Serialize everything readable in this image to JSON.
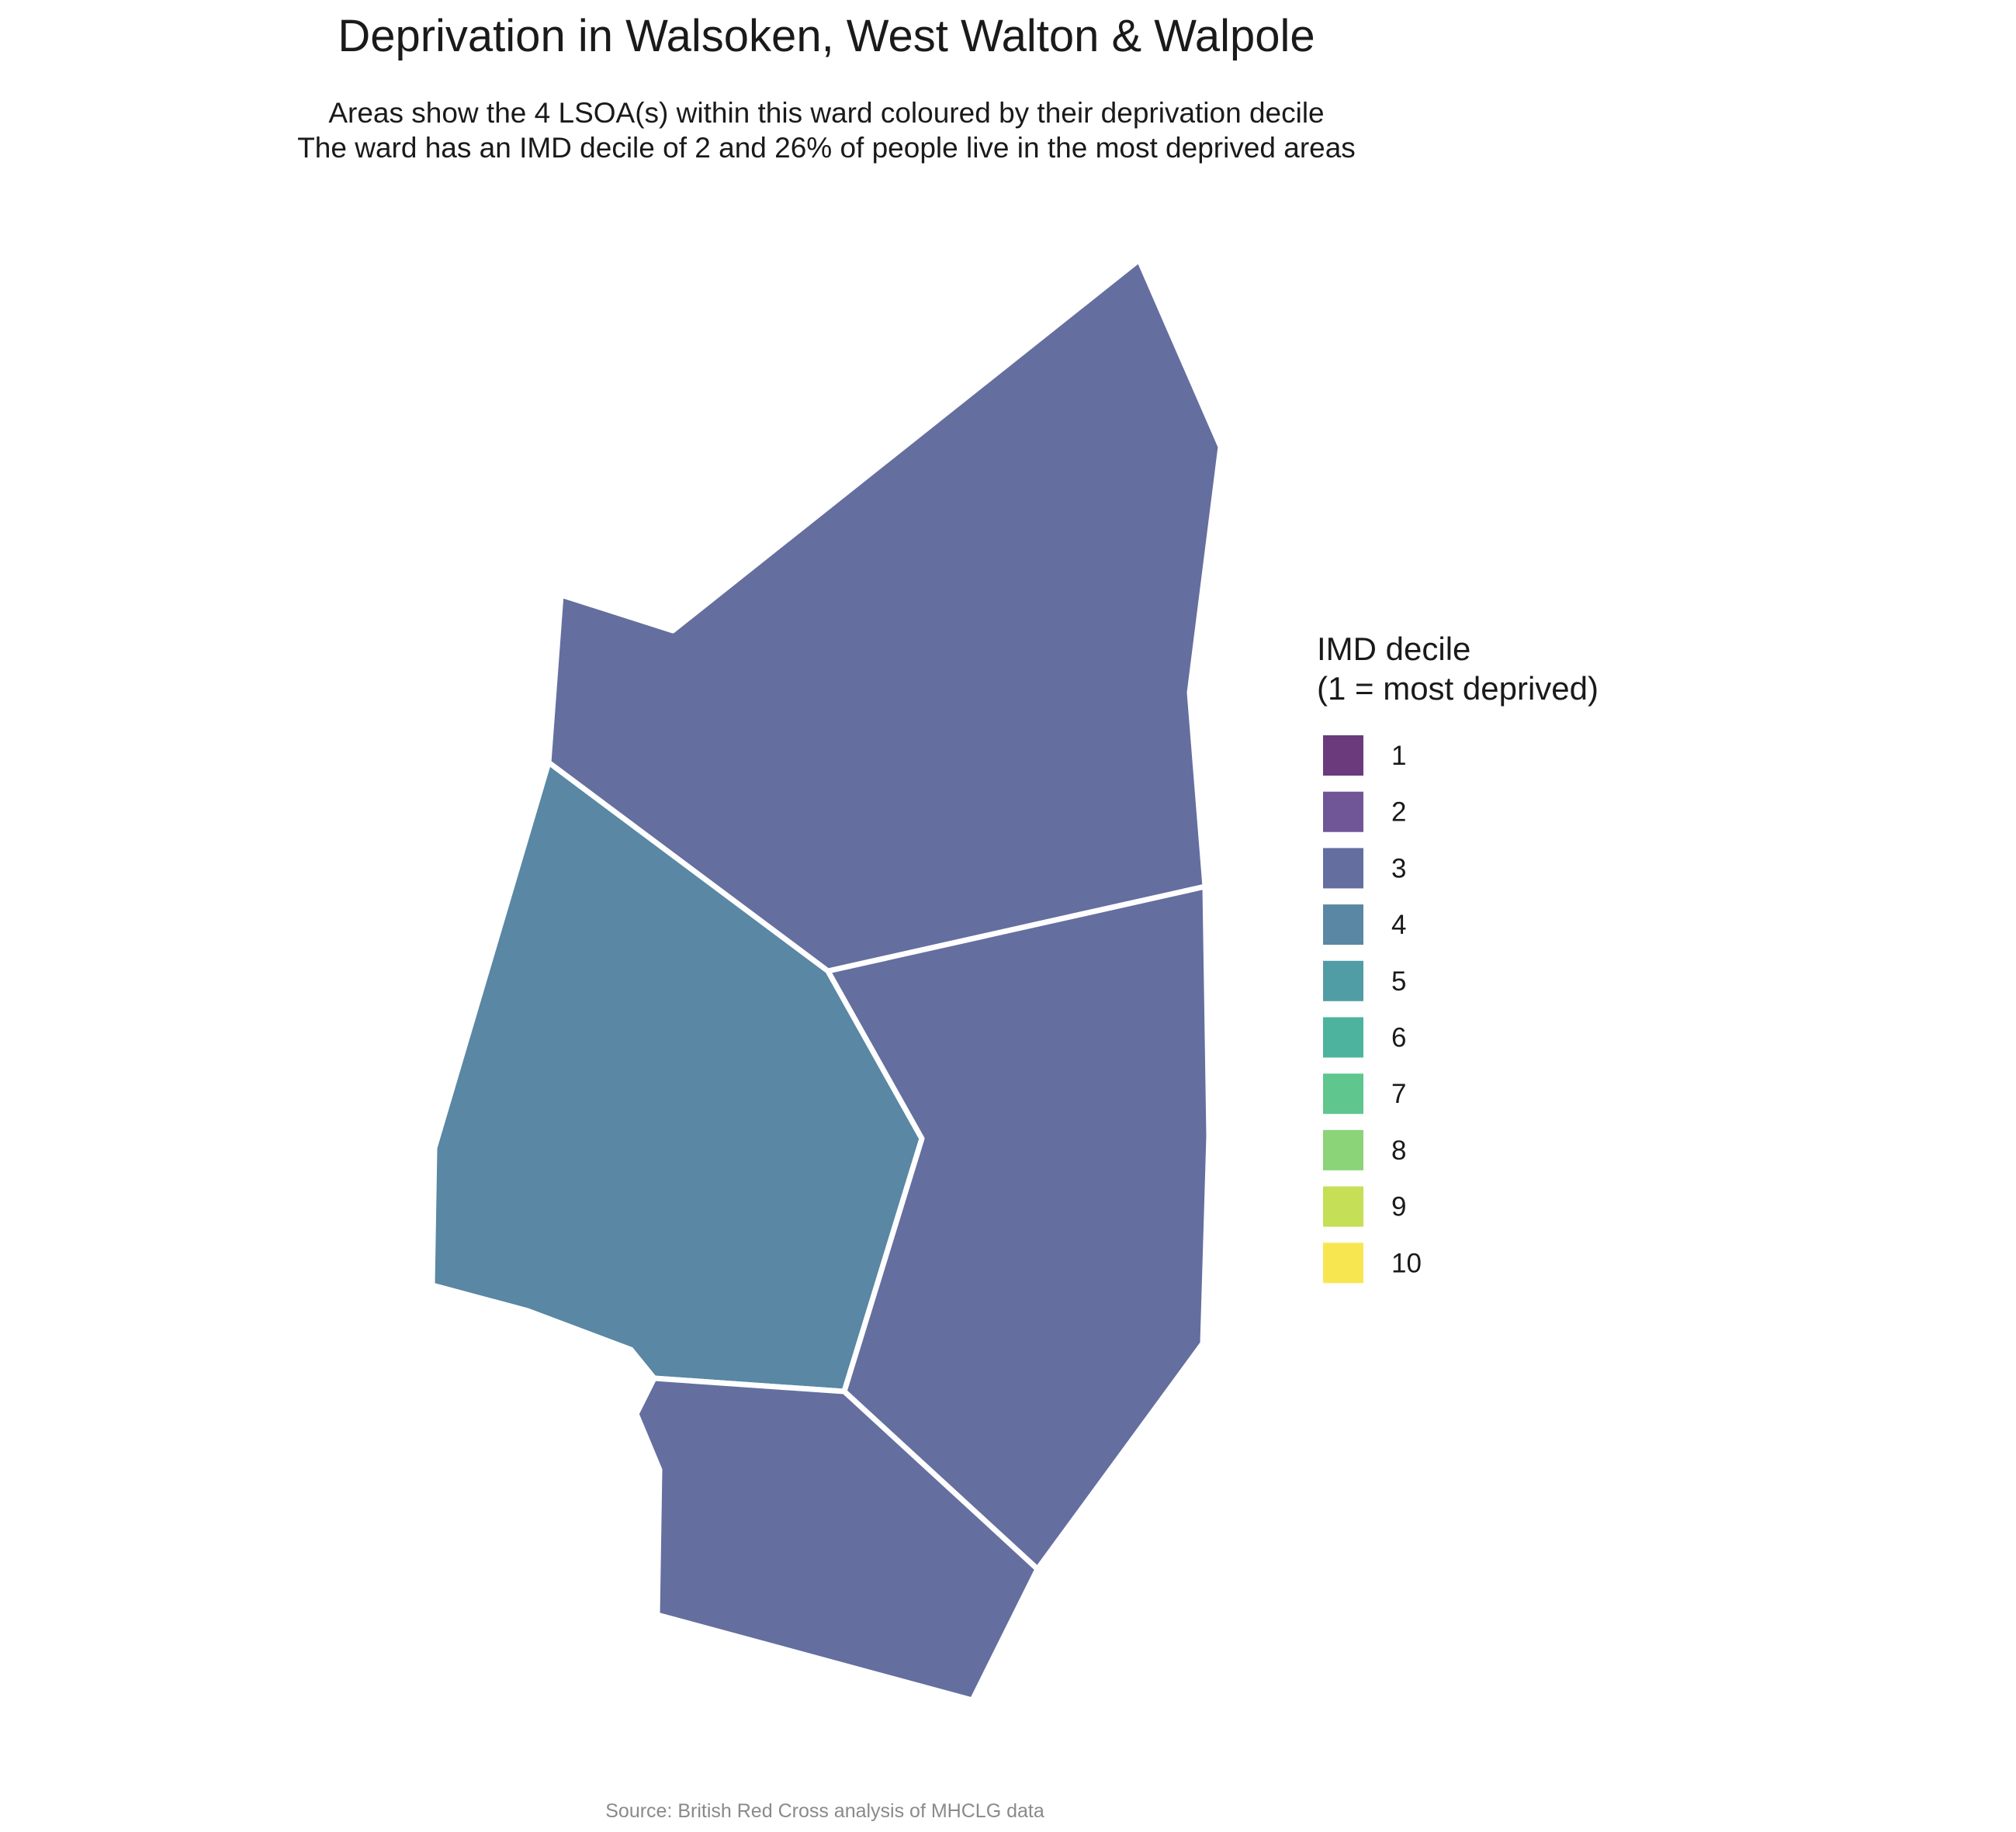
{
  "title": "Deprivation in Walsoken, West Walton & Walpole",
  "subtitle_line1": "Areas show the 4 LSOA(s) within this ward coloured by their deprivation decile",
  "subtitle_line2": "The ward has an IMD decile of 2 and 26% of people live in the most deprived areas",
  "caption": "Source: British Red Cross analysis of MHCLG data",
  "legend": {
    "title_line1": "IMD decile",
    "title_line2": "(1 = most deprived)",
    "items": [
      {
        "label": "1",
        "color": "#6b3a7d"
      },
      {
        "label": "2",
        "color": "#705696"
      },
      {
        "label": "3",
        "color": "#646e9f"
      },
      {
        "label": "4",
        "color": "#5987a4"
      },
      {
        "label": "5",
        "color": "#519da5"
      },
      {
        "label": "6",
        "color": "#4eb39e"
      },
      {
        "label": "7",
        "color": "#5fc68e"
      },
      {
        "label": "8",
        "color": "#8bd478"
      },
      {
        "label": "9",
        "color": "#c5df56"
      },
      {
        "label": "10",
        "color": "#f8e651"
      }
    ]
  },
  "map": {
    "areas": [
      {
        "name": "north",
        "decile": 3
      },
      {
        "name": "west",
        "decile": 4
      },
      {
        "name": "east",
        "decile": 3
      },
      {
        "name": "south",
        "decile": 3
      }
    ]
  }
}
